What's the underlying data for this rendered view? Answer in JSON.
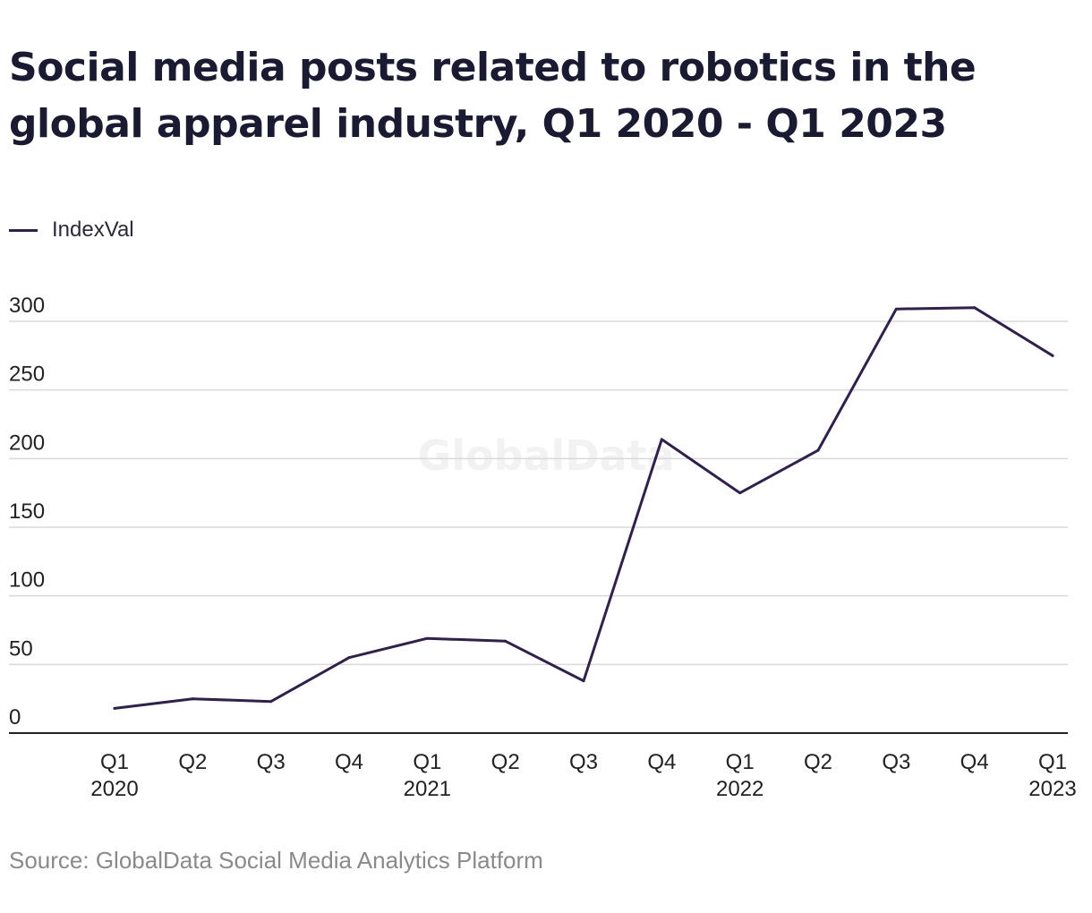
{
  "title": "Social media posts related to robotics in the global apparel industry, Q1 2020 - Q1 2023",
  "legend": {
    "label": "IndexVal"
  },
  "source": "Source: GlobalData Social Media Analytics Platform",
  "watermark": "GlobalData",
  "colors": {
    "line": "#30204f",
    "grid": "#d9d9d9",
    "axis": "#222222",
    "text": "#1a1a33",
    "source": "#8a8a8a"
  },
  "chart_data": {
    "type": "line",
    "title": "Social media posts related to robotics in the global apparel industry, Q1 2020 - Q1 2023",
    "xlabel": "",
    "ylabel": "",
    "categories": [
      [
        "Q1",
        "2020"
      ],
      [
        "Q2",
        ""
      ],
      [
        "Q3",
        ""
      ],
      [
        "Q4",
        ""
      ],
      [
        "Q1",
        "2021"
      ],
      [
        "Q2",
        ""
      ],
      [
        "Q3",
        ""
      ],
      [
        "Q4",
        ""
      ],
      [
        "Q1",
        "2022"
      ],
      [
        "Q2",
        ""
      ],
      [
        "Q3",
        ""
      ],
      [
        "Q4",
        ""
      ],
      [
        "Q1",
        "2023"
      ]
    ],
    "series": [
      {
        "name": "IndexVal",
        "values": [
          18,
          25,
          23,
          55,
          69,
          67,
          38,
          214,
          175,
          206,
          309,
          310,
          275
        ]
      }
    ],
    "ylim": [
      0,
      300
    ],
    "yticks": [
      0,
      50,
      100,
      150,
      200,
      250,
      300
    ],
    "grid": true,
    "legend_position": "top-left"
  }
}
